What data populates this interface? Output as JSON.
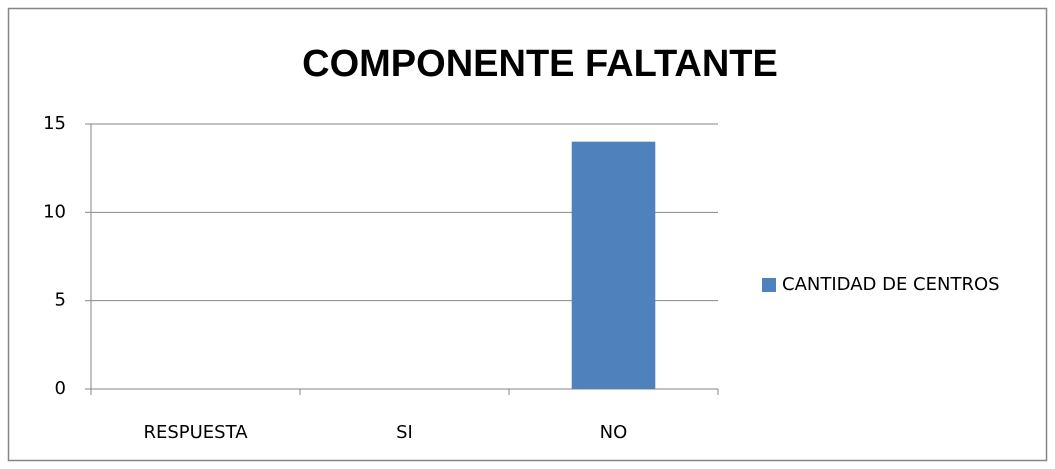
{
  "chart_data": {
    "type": "bar",
    "title": "COMPONENTE FALTANTE",
    "categories": [
      "RESPUESTA",
      "SI",
      "NO"
    ],
    "series": [
      {
        "name": "CANTIDAD DE CENTROS",
        "color": "#4f81bd",
        "values": [
          null,
          0,
          14
        ]
      }
    ],
    "ylim": [
      0,
      15
    ],
    "yticks": [
      0,
      5,
      10,
      15
    ],
    "grid": true,
    "legend": "right"
  }
}
